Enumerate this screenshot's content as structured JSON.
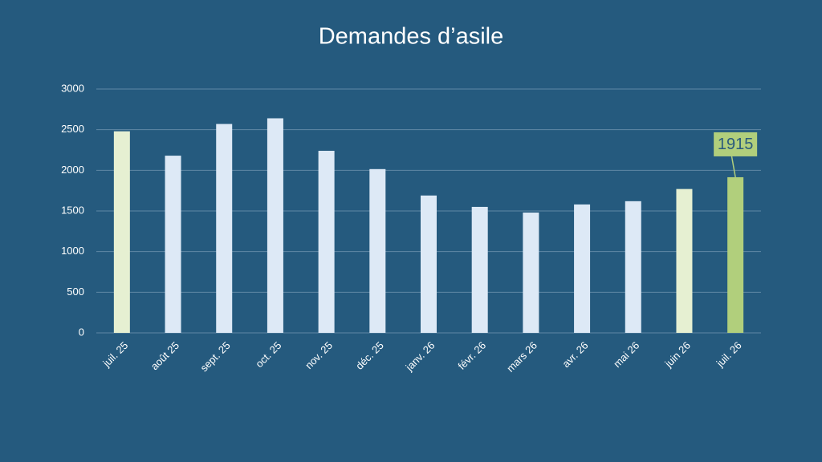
{
  "chart_data": {
    "type": "bar",
    "title": "Demandes d’asile",
    "categories": [
      "juil. 25",
      "août 25",
      "sept. 25",
      "oct. 25",
      "nov. 25",
      "déc. 25",
      "janv. 26",
      "févr. 26",
      "mars 26",
      "avr. 26",
      "mai 26",
      "juin 26",
      "juil. 26"
    ],
    "values": [
      2480,
      2180,
      2570,
      2640,
      2240,
      2015,
      1690,
      1550,
      1480,
      1580,
      1620,
      1770,
      1915
    ],
    "colors": [
      "#e6f0d2",
      "#dde9f6",
      "#dde9f6",
      "#dde9f6",
      "#dde9f6",
      "#dde9f6",
      "#dde9f6",
      "#dde9f6",
      "#dde9f6",
      "#dde9f6",
      "#dde9f6",
      "#e6f0d2",
      "#b1cf7c"
    ],
    "show_value": [
      false,
      false,
      false,
      false,
      false,
      false,
      false,
      false,
      false,
      false,
      false,
      false,
      true
    ],
    "ylim": [
      0,
      3000
    ],
    "yticks": [
      0,
      500,
      1000,
      1500,
      2000,
      2500,
      3000
    ],
    "grid": true
  }
}
